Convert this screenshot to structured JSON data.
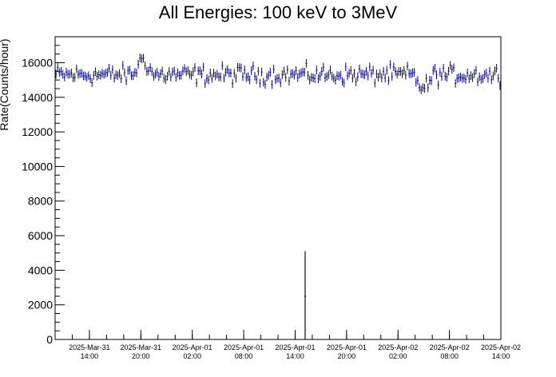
{
  "chart_data": {
    "type": "scatter",
    "title": "All Energies:  100 keV to 3MeV",
    "xlabel": "",
    "ylabel": "Rate(Counts/hour)",
    "x_axis": {
      "kind": "time",
      "start": "2025-03-31T10:00",
      "end": "2025-04-02T14:00",
      "tick_labels": [
        {
          "date": "2025-Mar-31",
          "time": "14:00"
        },
        {
          "date": "2025-Mar-31",
          "time": "20:00"
        },
        {
          "date": "2025-Apr-01",
          "time": "02:00"
        },
        {
          "date": "2025-Apr-01",
          "time": "08:00"
        },
        {
          "date": "2025-Apr-01",
          "time": "14:00"
        },
        {
          "date": "2025-Apr-01",
          "time": "20:00"
        },
        {
          "date": "2025-Apr-02",
          "time": "02:00"
        },
        {
          "date": "2025-Apr-02",
          "time": "08:00"
        },
        {
          "date": "2025-Apr-02",
          "time": "14:00"
        }
      ]
    },
    "ylim": [
      0,
      17500
    ],
    "y_ticks": [
      "0",
      "2000",
      "4000",
      "6000",
      "8000",
      "10000",
      "12000",
      "14000",
      "16000"
    ],
    "grid": false,
    "series": [
      {
        "color": "#000080",
        "baseline": 15300,
        "noise": 350,
        "error": 250,
        "features": [
          {
            "x": "2025-03-31T20:15",
            "y": 16300
          },
          {
            "x": "2025-04-02T05:00",
            "y": 14400
          }
        ],
        "spike": {
          "x": "2025-04-01T15:10",
          "y": 2500,
          "err_low": 0,
          "err_high": 5100
        }
      }
    ]
  }
}
